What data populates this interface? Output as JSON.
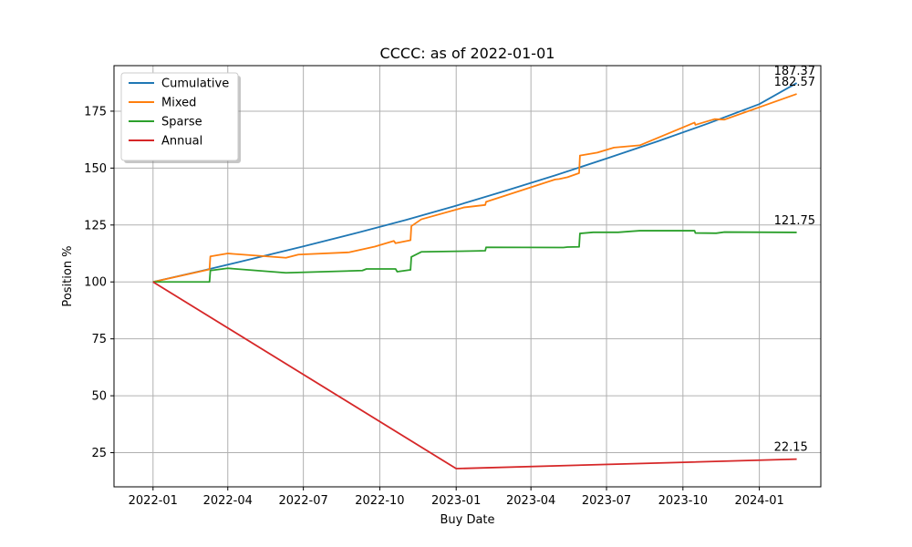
{
  "chart_data": {
    "type": "line",
    "title": "CCCC: as of 2022-01-01",
    "xlabel": "Buy Date",
    "ylabel": "Position %",
    "x_type": "date",
    "xlim": [
      "2021-11-15",
      "2024-03-15"
    ],
    "ylim": [
      10,
      195
    ],
    "x_ticks": [
      {
        "value": "2022-01-01",
        "label": "2022-01"
      },
      {
        "value": "2022-04-01",
        "label": "2022-04"
      },
      {
        "value": "2022-07-01",
        "label": "2022-07"
      },
      {
        "value": "2022-10-01",
        "label": "2022-10"
      },
      {
        "value": "2023-01-01",
        "label": "2023-01"
      },
      {
        "value": "2023-04-01",
        "label": "2023-04"
      },
      {
        "value": "2023-07-01",
        "label": "2023-07"
      },
      {
        "value": "2023-10-01",
        "label": "2023-10"
      },
      {
        "value": "2024-01-01",
        "label": "2024-01"
      }
    ],
    "y_ticks": [
      25,
      50,
      75,
      100,
      125,
      150,
      175
    ],
    "grid": true,
    "legend_position": "top-left",
    "series": [
      {
        "name": "Cumulative",
        "color": "#1f77b4",
        "end_label": "187.37",
        "points": [
          [
            "2022-01-01",
            100
          ],
          [
            "2022-03-01",
            104.9
          ],
          [
            "2022-05-01",
            110.2
          ],
          [
            "2022-07-01",
            115.6
          ],
          [
            "2022-09-01",
            121.3
          ],
          [
            "2022-11-01",
            127.2
          ],
          [
            "2023-01-01",
            133.5
          ],
          [
            "2023-03-01",
            140.0
          ],
          [
            "2023-05-01",
            146.9
          ],
          [
            "2023-07-01",
            154.2
          ],
          [
            "2023-09-01",
            161.8
          ],
          [
            "2023-11-01",
            169.7
          ],
          [
            "2024-01-01",
            178.1
          ],
          [
            "2024-02-15",
            187.37
          ]
        ]
      },
      {
        "name": "Mixed",
        "color": "#ff7f0e",
        "end_label": "182.57",
        "points": [
          [
            "2022-01-01",
            100
          ],
          [
            "2022-03-10",
            105.5
          ],
          [
            "2022-03-11",
            111.2
          ],
          [
            "2022-04-01",
            112.5
          ],
          [
            "2022-06-10",
            110.6
          ],
          [
            "2022-06-25",
            112.0
          ],
          [
            "2022-08-25",
            113.0
          ],
          [
            "2022-09-25",
            115.5
          ],
          [
            "2022-10-18",
            118.0
          ],
          [
            "2022-10-20",
            117.0
          ],
          [
            "2022-11-07",
            118.3
          ],
          [
            "2022-11-08",
            124.5
          ],
          [
            "2022-11-20",
            127.5
          ],
          [
            "2023-01-10",
            132.7
          ],
          [
            "2023-02-05",
            133.8
          ],
          [
            "2023-02-06",
            135.2
          ],
          [
            "2023-04-30",
            145.0
          ],
          [
            "2023-05-05",
            145.2
          ],
          [
            "2023-05-15",
            146.0
          ],
          [
            "2023-05-29",
            147.8
          ],
          [
            "2023-05-30",
            155.5
          ],
          [
            "2023-06-20",
            156.8
          ],
          [
            "2023-07-10",
            159.0
          ],
          [
            "2023-08-10",
            160.0
          ],
          [
            "2023-10-15",
            170.0
          ],
          [
            "2023-10-16",
            169.0
          ],
          [
            "2023-11-08",
            171.5
          ],
          [
            "2023-11-20",
            171.3
          ],
          [
            "2024-02-15",
            182.57
          ]
        ]
      },
      {
        "name": "Sparse",
        "color": "#2ca02c",
        "end_label": "121.75",
        "points": [
          [
            "2022-01-01",
            100
          ],
          [
            "2022-03-10",
            100
          ],
          [
            "2022-03-11",
            105.0
          ],
          [
            "2022-04-01",
            106.0
          ],
          [
            "2022-06-10",
            104.0
          ],
          [
            "2022-09-10",
            105.0
          ],
          [
            "2022-09-15",
            105.7
          ],
          [
            "2022-10-20",
            105.7
          ],
          [
            "2022-10-22",
            104.5
          ],
          [
            "2022-11-07",
            105.3
          ],
          [
            "2022-11-08",
            111.0
          ],
          [
            "2022-11-20",
            113.2
          ],
          [
            "2023-01-25",
            113.6
          ],
          [
            "2023-02-05",
            113.7
          ],
          [
            "2023-02-06",
            115.2
          ],
          [
            "2023-05-10",
            115.1
          ],
          [
            "2023-05-15",
            115.3
          ],
          [
            "2023-05-29",
            115.4
          ],
          [
            "2023-05-30",
            121.3
          ],
          [
            "2023-06-15",
            121.8
          ],
          [
            "2023-07-15",
            121.8
          ],
          [
            "2023-08-10",
            122.5
          ],
          [
            "2023-10-15",
            122.5
          ],
          [
            "2023-10-16",
            121.5
          ],
          [
            "2023-11-10",
            121.4
          ],
          [
            "2023-11-20",
            121.9
          ],
          [
            "2024-02-15",
            121.75
          ]
        ]
      },
      {
        "name": "Annual",
        "color": "#d62728",
        "end_label": "22.15",
        "points": [
          [
            "2022-01-01",
            100
          ],
          [
            "2023-01-01",
            18.0
          ],
          [
            "2024-02-15",
            22.15
          ]
        ]
      }
    ]
  }
}
